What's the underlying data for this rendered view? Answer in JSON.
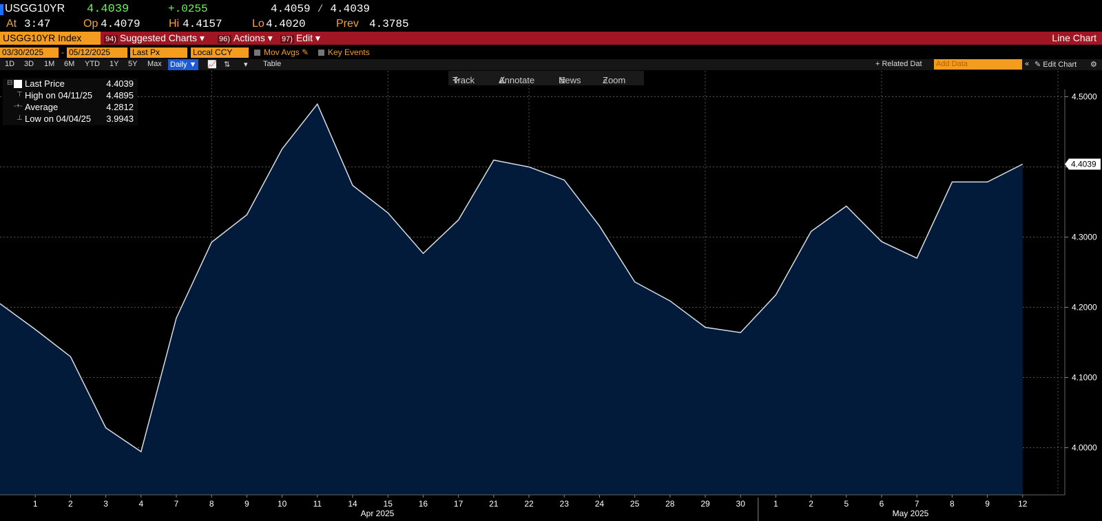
{
  "quote": {
    "ticker": "USGG10YR",
    "last": "4.4039",
    "change": "+.0255",
    "bid_ask": "4.4059 ⁄ 4.4039",
    "at_label": "At",
    "at_value": "3:47",
    "open_label": "Op",
    "open_value": "4.4079",
    "high_label": "Hi",
    "high_value": "4.4157",
    "low_label": "Lo",
    "low_value": "4.4020",
    "prev_label": "Prev",
    "prev_value": "4.3785"
  },
  "menubar": {
    "security": "USGG10YR Index",
    "suggested_num": "94)",
    "suggested": "Suggested Charts ▾",
    "actions_num": "96)",
    "actions": "Actions ▾",
    "edit_num": "97)",
    "edit": "Edit ▾",
    "chart_type": "Line Chart"
  },
  "params": {
    "start_date": "03/30/2025",
    "end_date": "05/12/2025",
    "dash": "-",
    "field": "Last Px",
    "currency": "Local CCY",
    "mov_avgs": "Mov Avgs",
    "key_events": "Key Events"
  },
  "toolbar": {
    "periods": [
      "1D",
      "3D",
      "1M",
      "6M",
      "YTD",
      "1Y",
      "5Y",
      "Max"
    ],
    "frequency": "Daily ▼",
    "table": "Table",
    "related": "+ Related Dat",
    "add_data_placeholder": "Add Data",
    "edit_chart": "Edit Chart"
  },
  "tools": {
    "track": "Track",
    "annotate": "Annotate",
    "news": "News",
    "zoom": "Zoom"
  },
  "legend": {
    "last_price_label": "Last Price",
    "last_price": "4.4039",
    "high_label": "High on 04/11/25",
    "high": "4.4895",
    "avg_label": "Average",
    "avg": "4.2812",
    "low_label": "Low on 04/04/25",
    "low": "3.9943"
  },
  "colors": {
    "line": "#d8dde6",
    "fill": "#031b3a",
    "accent": "#f39c20",
    "menubar": "#a01622"
  },
  "chart_data": {
    "type": "area",
    "x": [
      "3/31",
      "4/1",
      "4/2",
      "4/3",
      "4/4",
      "4/7",
      "4/8",
      "4/9",
      "4/10",
      "4/11",
      "4/14",
      "4/15",
      "4/16",
      "4/17",
      "4/21",
      "4/22",
      "4/23",
      "4/24",
      "4/25",
      "4/28",
      "4/29",
      "4/30",
      "5/1",
      "5/2",
      "5/5",
      "5/6",
      "5/7",
      "5/8",
      "5/9",
      "5/12"
    ],
    "tick_labels": [
      "",
      "1",
      "2",
      "3",
      "4",
      "7",
      "8",
      "9",
      "10",
      "11",
      "14",
      "15",
      "16",
      "17",
      "21",
      "22",
      "23",
      "24",
      "25",
      "28",
      "29",
      "30",
      "1",
      "2",
      "5",
      "6",
      "7",
      "8",
      "9",
      "12"
    ],
    "values": [
      4.2052,
      4.1685,
      4.1297,
      4.0283,
      3.9943,
      4.1847,
      4.2926,
      4.3318,
      4.4256,
      4.4895,
      4.3736,
      4.3345,
      4.2768,
      4.3244,
      4.4097,
      4.3999,
      4.3813,
      4.3159,
      4.2362,
      4.2091,
      4.1715,
      4.164,
      4.2176,
      4.308,
      4.3441,
      4.2935,
      4.27,
      4.3785,
      4.3785,
      4.4039
    ],
    "month_labels": [
      "Apr 2025",
      "May 2025"
    ],
    "y_ticks": [
      "4.0000",
      "4.1000",
      "4.2000",
      "4.3000",
      "4.4000",
      "4.5000"
    ],
    "last_value_tag": "4.4039",
    "ylim": [
      3.945,
      4.545
    ],
    "grid": true,
    "title": "",
    "xlabel": "",
    "ylabel": ""
  }
}
